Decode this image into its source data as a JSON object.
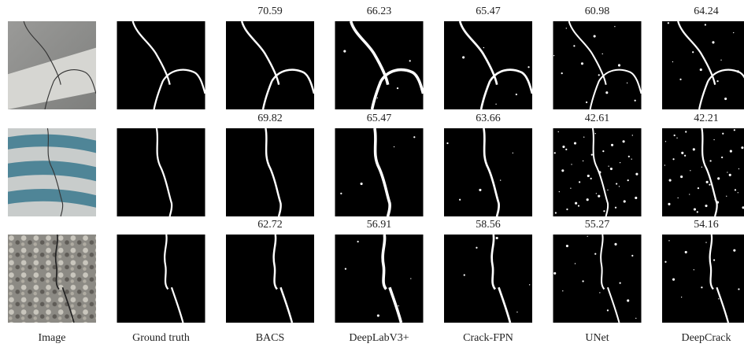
{
  "columns": [
    "Image",
    "Ground truth",
    "BACS",
    "DeepLabV3+",
    "Crack-FPN",
    "UNet",
    "DeepCrack"
  ],
  "rows": [
    {
      "scores": [
        70.59,
        66.23,
        65.47,
        60.98,
        64.24
      ]
    },
    {
      "scores": [
        69.82,
        65.47,
        63.66,
        42.61,
        42.21
      ]
    },
    {
      "scores": [
        62.72,
        56.91,
        58.56,
        55.27,
        54.16
      ]
    }
  ]
}
